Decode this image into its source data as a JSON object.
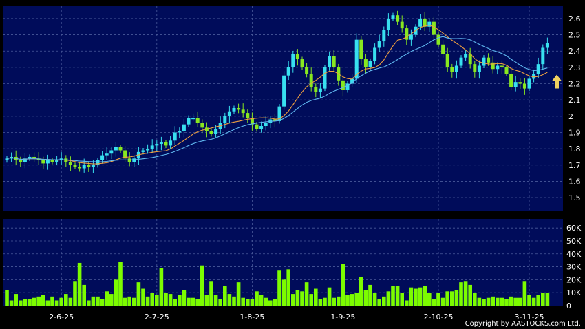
{
  "copyright": "Copyright by AASTOCKS.com Ltd.",
  "colors": {
    "background": "#000000",
    "panel": "#000c5a",
    "grid": "#4a5a9a",
    "up_candle": "#38e0f0",
    "down_candle": "#88e820",
    "volume_bar": "#7cfc00",
    "ma_short": "#f0a040",
    "ma_long": "#60b8f0",
    "arrow": "#f0d060"
  },
  "chart_data": [
    {
      "type": "candlestick",
      "title": "",
      "x_tick_labels": [
        "2-6-25",
        "2-7-25",
        "1-8-25",
        "1-9-25",
        "2-10-25",
        "3-11-25"
      ],
      "y_tick_labels": [
        "2.6",
        "2.5",
        "2.4",
        "2.3",
        "2.2",
        "2.1",
        "2",
        "1.9",
        "1.8",
        "1.7",
        "1.6",
        "1.5"
      ],
      "ylim": [
        1.42,
        2.68
      ],
      "grid": true,
      "close": [
        1.74,
        1.75,
        1.73,
        1.72,
        1.74,
        1.75,
        1.74,
        1.73,
        1.71,
        1.73,
        1.72,
        1.73,
        1.74,
        1.72,
        1.7,
        1.69,
        1.68,
        1.7,
        1.69,
        1.7,
        1.73,
        1.76,
        1.77,
        1.79,
        1.81,
        1.79,
        1.74,
        1.72,
        1.74,
        1.78,
        1.79,
        1.8,
        1.82,
        1.83,
        1.84,
        1.82,
        1.85,
        1.9,
        1.91,
        1.95,
        1.99,
        1.99,
        1.96,
        1.93,
        1.91,
        1.89,
        1.92,
        1.96,
        2.0,
        2.03,
        2.05,
        2.04,
        2.02,
        1.99,
        1.95,
        1.92,
        1.94,
        1.96,
        1.98,
        1.97,
        2.06,
        2.25,
        2.3,
        2.38,
        2.35,
        2.3,
        2.26,
        2.18,
        2.15,
        2.17,
        2.3,
        2.37,
        2.3,
        2.22,
        2.16,
        2.2,
        2.23,
        2.47,
        2.35,
        2.3,
        2.34,
        2.42,
        2.46,
        2.53,
        2.6,
        2.62,
        2.58,
        2.54,
        2.47,
        2.5,
        2.55,
        2.6,
        2.55,
        2.58,
        2.5,
        2.44,
        2.38,
        2.3,
        2.27,
        2.31,
        2.36,
        2.38,
        2.32,
        2.27,
        2.31,
        2.36,
        2.33,
        2.29,
        2.31,
        2.3,
        2.26,
        2.18,
        2.21,
        2.2,
        2.17,
        2.23,
        2.26,
        2.32,
        2.42,
        2.45
      ]
    },
    {
      "type": "bar",
      "title": "",
      "y_tick_labels": [
        "60K",
        "50K",
        "40K",
        "30K",
        "20K",
        "10K",
        "0"
      ],
      "ylim": [
        0,
        67000
      ],
      "values": [
        12000,
        4000,
        9000,
        4000,
        5000,
        5000,
        6000,
        7000,
        8000,
        4000,
        7000,
        4000,
        6000,
        9000,
        6000,
        19000,
        33000,
        16000,
        4000,
        7000,
        7000,
        5000,
        11000,
        9000,
        20000,
        34000,
        6000,
        7000,
        6000,
        18000,
        13000,
        7000,
        10000,
        8000,
        29000,
        10000,
        9000,
        5000,
        8000,
        12000,
        6000,
        6000,
        5000,
        31000,
        8000,
        19000,
        8000,
        5000,
        15000,
        9000,
        7000,
        18000,
        6000,
        5000,
        5000,
        11000,
        8000,
        6000,
        4000,
        5000,
        27000,
        20000,
        28000,
        9000,
        12000,
        11000,
        18000,
        9000,
        13000,
        5000,
        6000,
        14000,
        6000,
        7000,
        32000,
        8000,
        9000,
        10000,
        22000,
        12000,
        16000,
        10000,
        5000,
        7000,
        11000,
        15000,
        15000,
        10000,
        4000,
        14000,
        13000,
        14000,
        15000,
        10000,
        5000,
        10000,
        6000,
        11000,
        11000,
        12000,
        18000,
        19000,
        16000,
        10000,
        6000,
        5000,
        6000,
        7000,
        6000,
        6000,
        5000,
        7000,
        6000,
        6000,
        19000,
        8000,
        6000,
        8000,
        10000,
        10000
      ]
    }
  ],
  "marker": "up-arrow-icon"
}
